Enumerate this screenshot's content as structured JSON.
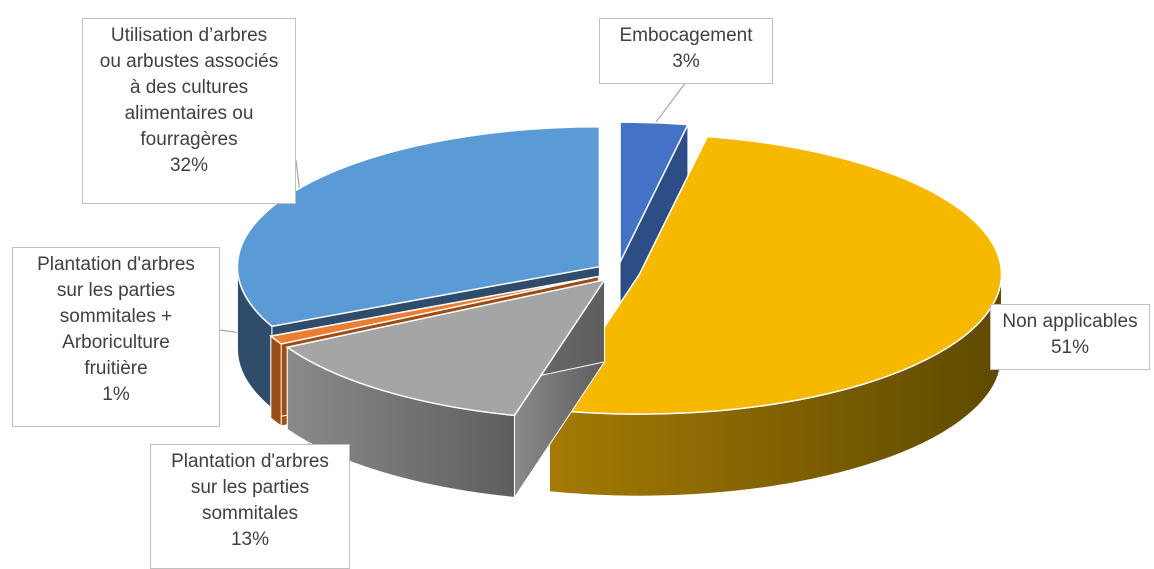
{
  "chart_data": {
    "type": "pie",
    "title": "",
    "style": "3d-exploded",
    "slices": [
      {
        "label": "Embocagement",
        "pct_label": "3%",
        "value": 3,
        "color": "#4472c4"
      },
      {
        "label": "Non applicables",
        "pct_label": "51%",
        "value": 51,
        "color": "#f7b900"
      },
      {
        "label": "Plantation d'arbres sur les parties sommitales",
        "pct_label": "13%",
        "value": 13,
        "color": "#a5a5a5"
      },
      {
        "label": "Plantation d'arbres sur les parties sommitales + Arboriculture fruitière",
        "pct_label": "1%",
        "value": 1,
        "color": "#ed7d31"
      },
      {
        "label": "Utilisation d’arbres ou arbustes associés à des cultures alimentaires ou fourragères",
        "pct_label": "32%",
        "value": 32,
        "color": "#5b9bd5"
      }
    ]
  },
  "labels": {
    "embocagement": {
      "lines": [
        "Embocagement",
        "3%"
      ]
    },
    "non_applicables": {
      "lines": [
        "Non applicables",
        "51%"
      ]
    },
    "plantation": {
      "lines": [
        "Plantation d'arbres",
        "sur les parties",
        "sommitales",
        "13%"
      ]
    },
    "plantation_fruit": {
      "lines": [
        "Plantation d'arbres",
        "sur les parties",
        "sommitales +",
        "Arboriculture",
        "fruitière",
        "1%"
      ]
    },
    "utilisation": {
      "lines": [
        "Utilisation d’arbres",
        "ou arbustes associés",
        "à des cultures",
        "alimentaires ou",
        "fourragères",
        "32%"
      ]
    }
  }
}
